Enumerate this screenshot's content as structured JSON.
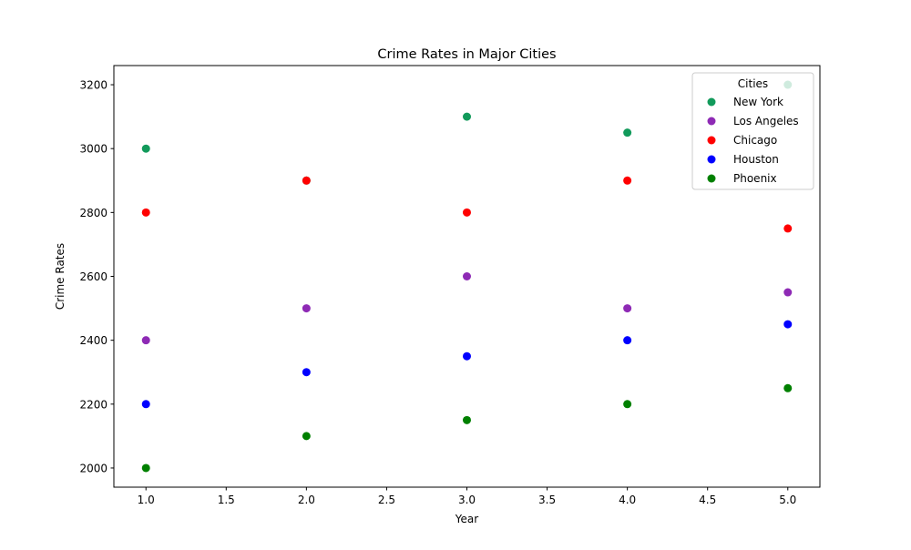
{
  "chart_data": {
    "type": "scatter",
    "title": "Crime Rates in Major Cities",
    "xlabel": "Year",
    "ylabel": "Crime Rates",
    "xlim": [
      0.8,
      5.2
    ],
    "ylim": [
      1940,
      3260
    ],
    "xticks": [
      1.0,
      1.5,
      2.0,
      2.5,
      3.0,
      3.5,
      4.0,
      4.5,
      5.0
    ],
    "xtick_labels": [
      "1.0",
      "1.5",
      "2.0",
      "2.5",
      "3.0",
      "3.5",
      "4.0",
      "4.5",
      "5.0"
    ],
    "yticks": [
      2000,
      2200,
      2400,
      2600,
      2800,
      3000,
      3200
    ],
    "ytick_labels": [
      "2000",
      "2200",
      "2400",
      "2600",
      "2800",
      "3000",
      "3200"
    ],
    "grid": false,
    "legend": {
      "title": "Cities",
      "placement": "upper right"
    },
    "series": [
      {
        "name": "New York",
        "color": "#129a5b",
        "x": [
          1,
          2,
          3,
          4,
          5
        ],
        "y": [
          3000,
          2900,
          3100,
          3050,
          3200
        ]
      },
      {
        "name": "Los Angeles",
        "color": "#8e2ab5",
        "x": [
          1,
          2,
          3,
          4,
          5
        ],
        "y": [
          2400,
          2500,
          2600,
          2500,
          2550
        ]
      },
      {
        "name": "Chicago",
        "color": "#ff0000",
        "x": [
          1,
          2,
          3,
          4,
          5
        ],
        "y": [
          2800,
          2900,
          2800,
          2900,
          2750
        ]
      },
      {
        "name": "Houston",
        "color": "#0000ff",
        "x": [
          1,
          2,
          3,
          4,
          5
        ],
        "y": [
          2200,
          2300,
          2350,
          2400,
          2450
        ]
      },
      {
        "name": "Phoenix",
        "color": "#008000",
        "x": [
          1,
          2,
          3,
          4,
          5
        ],
        "y": [
          2000,
          2100,
          2150,
          2200,
          2250
        ]
      }
    ]
  }
}
